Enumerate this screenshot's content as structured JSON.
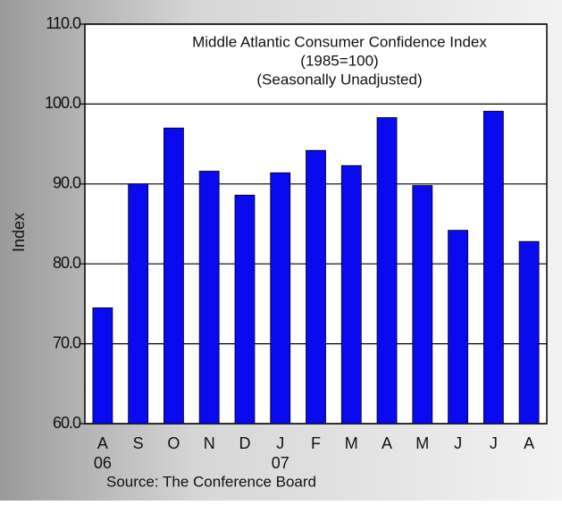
{
  "chart_data": {
    "type": "bar",
    "title": "Middle Atlantic Consumer Confidence Index",
    "subtitle": [
      "(1985=100)",
      "(Seasonally Unadjusted)"
    ],
    "y_label": "Index",
    "source": "Source: The Conference Board",
    "categories": [
      "A",
      "S",
      "O",
      "N",
      "D",
      "J",
      "F",
      "M",
      "A",
      "M",
      "J",
      "J",
      "A"
    ],
    "year_labels": [
      "06",
      null,
      null,
      null,
      null,
      "07",
      null,
      null,
      null,
      null,
      null,
      null,
      null
    ],
    "values": [
      74.5,
      90.0,
      97.0,
      91.6,
      88.6,
      91.4,
      94.2,
      92.3,
      98.3,
      89.8,
      84.2,
      99.1,
      82.8
    ],
    "color": "#0a0af0",
    "ylim": [
      60,
      110
    ],
    "yticks": [
      {
        "value": 60,
        "label": "60.0"
      },
      {
        "value": 70,
        "label": "70.0"
      },
      {
        "value": 80,
        "label": "80.0"
      },
      {
        "value": 90,
        "label": "90.0"
      },
      {
        "value": 100,
        "label": "100.0"
      },
      {
        "value": 110,
        "label": "110.0"
      }
    ],
    "grid": true
  }
}
